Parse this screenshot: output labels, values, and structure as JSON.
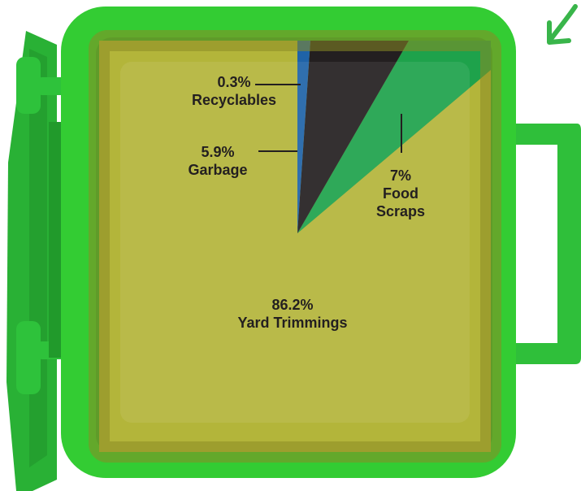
{
  "chart_data": {
    "type": "pie",
    "title": "",
    "slices": [
      {
        "label": "Recyclables",
        "value": 0.3,
        "display": "0.3%",
        "color": "#1f63a8"
      },
      {
        "label": "Garbage",
        "value": 5.9,
        "display": "5.9%",
        "color": "#231f20"
      },
      {
        "label": "Food Scraps",
        "value": 7,
        "display": "7%",
        "color": "#1ea24b"
      },
      {
        "label": "Yard Trimmings",
        "value": 86.2,
        "display": "86.2%",
        "color": "#b3b53a"
      }
    ]
  },
  "labels": {
    "recyclables": {
      "value": "0.3%",
      "name": "Recyclables"
    },
    "garbage": {
      "value": "5.9%",
      "name": "Garbage"
    },
    "food": {
      "value": "7%",
      "name_line1": "Food",
      "name_line2": "Scraps"
    },
    "yard": {
      "value": "86.2%",
      "name": "Yard Trimmings"
    }
  },
  "colors": {
    "bin_green": "#33cc33",
    "bin_dark": "#1f9d2a",
    "panel_olive": "#a09a2e",
    "yard_fill": "#b3b53a",
    "food_fill": "#1ea24b",
    "garbage_fill": "#231f20",
    "recyclables_fill": "#1f63a8",
    "text": "#231f20",
    "arrow": "#39b54a"
  },
  "icons": [
    "green-bin-illustration",
    "pointer-arrow-icon"
  ]
}
